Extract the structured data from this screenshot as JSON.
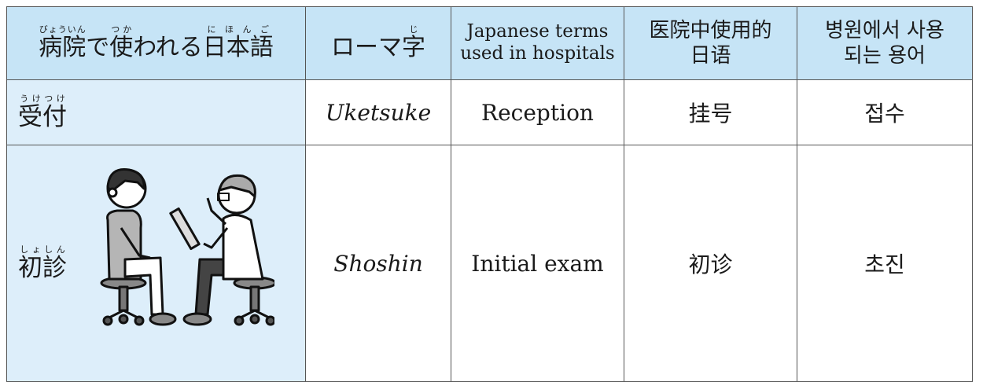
{
  "table": {
    "header": [
      {
        "segments": [
          {
            "text": "病院",
            "reading": "びょういん"
          },
          {
            "text": "で"
          },
          {
            "text": "使",
            "reading": "つか"
          },
          {
            "text": "われる"
          },
          {
            "text": "日本語",
            "reading": "にほんご"
          }
        ]
      },
      {
        "segments": [
          {
            "text": "ローマ"
          },
          {
            "text": "字",
            "reading": "じ"
          }
        ]
      },
      {
        "lines": [
          "Japanese terms",
          "used in hospitals"
        ]
      },
      {
        "lines": [
          "医院中使用的",
          "日语"
        ]
      },
      {
        "lines": [
          "병원에서 사용",
          "되는 용어"
        ]
      }
    ],
    "rows": [
      {
        "term": {
          "text": "受付",
          "reading": "うけつけ"
        },
        "romaji": "Uketsuke",
        "english": "Reception",
        "chinese": "挂号",
        "korean": "접수"
      },
      {
        "term": {
          "text": "初診",
          "reading": "しょしん"
        },
        "romaji": "Shoshin",
        "english": "Initial exam",
        "chinese": "初诊",
        "korean": "초진"
      }
    ]
  }
}
